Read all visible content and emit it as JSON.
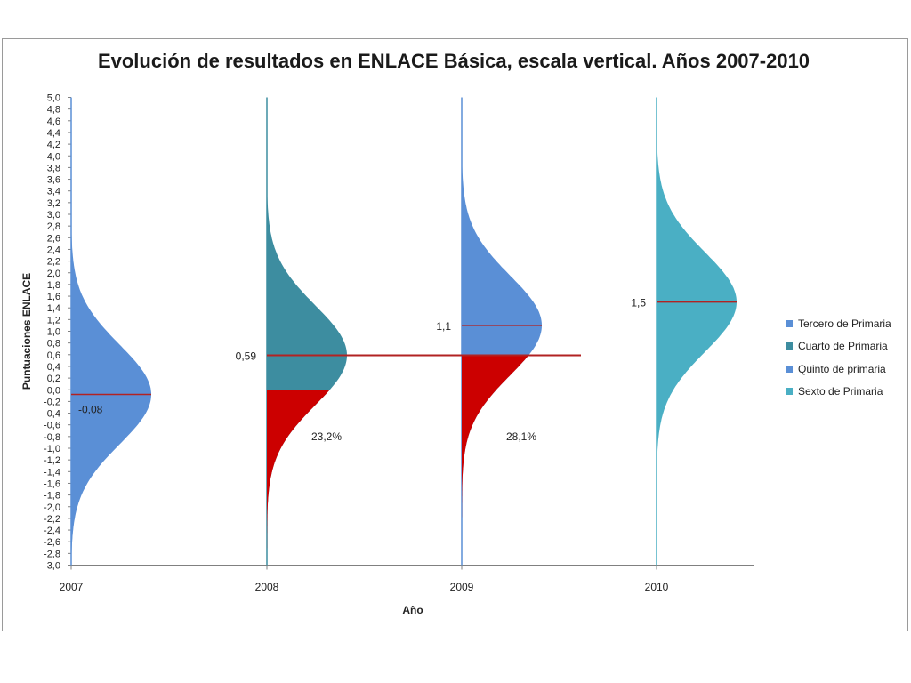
{
  "chart_data": {
    "type": "area",
    "title": "Evolución de resultados en ENLACE Básica, escala vertical. Años 2007-2010",
    "xlabel": "Año",
    "ylabel": "Puntuaciones ENLACE",
    "ylim": [
      -3.0,
      5.0
    ],
    "ytick_step": 0.2,
    "categories": [
      "2007",
      "2008",
      "2009",
      "2010"
    ],
    "grid": false,
    "legend_position": "right",
    "series": [
      {
        "name": "Tercero de Primaria",
        "year": "2007",
        "mean": -0.08,
        "mean_label": "-0,08",
        "color": "#5a8fd6"
      },
      {
        "name": "Cuarto de Primaria",
        "year": "2008",
        "mean": 0.59,
        "mean_label": "0,59",
        "color": "#3d8da0",
        "shaded_below": 0.0,
        "shaded_label": "23,2%"
      },
      {
        "name": "Quinto de primaria",
        "year": "2009",
        "mean": 1.1,
        "mean_label": "1,1",
        "color": "#5a8fd6",
        "shaded_below": 0.59,
        "shaded_label": "28,1%"
      },
      {
        "name": "Sexto de Primaria",
        "year": "2010",
        "mean": 1.5,
        "mean_label": "1,5",
        "color": "#4aafc4"
      }
    ],
    "reference_line": {
      "value": 0.59
    },
    "shade_color": "#cc0000",
    "mean_line_color": "#b22222"
  }
}
